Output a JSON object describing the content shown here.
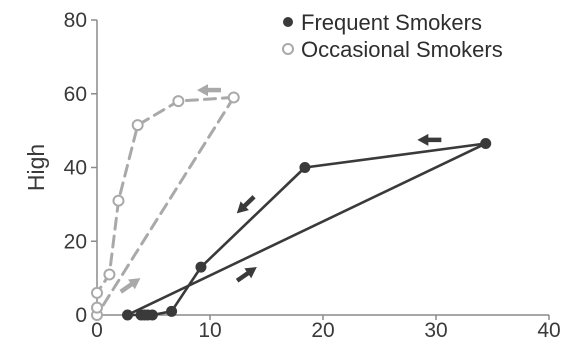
{
  "chart_data": {
    "type": "line",
    "title": "",
    "xlabel": "",
    "ylabel": "High",
    "xlim": [
      0,
      40
    ],
    "ylim": [
      0,
      80
    ],
    "xticks": [
      0,
      10,
      20,
      30,
      40
    ],
    "yticks": [
      0,
      20,
      40,
      60,
      80
    ],
    "grid": false,
    "legend_position": "top-right",
    "series": [
      {
        "name": "Frequent Smokers",
        "color": "#3a3a3a",
        "line_style": "solid",
        "marker": "filled-circle",
        "x": [
          2.7,
          3.9,
          4.2,
          4.5,
          4.9,
          6.6,
          9.2,
          18.4,
          34.4
        ],
        "y": [
          0,
          0,
          0,
          0,
          0,
          1,
          13,
          40,
          46.5
        ],
        "closing_segment": {
          "from": [
            34.4,
            46.5
          ],
          "to": [
            2.7,
            0
          ]
        }
      },
      {
        "name": "Occasional Smokers",
        "color": "#a9a9a9",
        "line_style": "dashed",
        "marker": "open-circle",
        "x": [
          0,
          0,
          0,
          1.1,
          1.9,
          3.6,
          7.2,
          12.1
        ],
        "y": [
          0,
          2,
          6,
          11,
          31,
          51.5,
          58,
          59
        ],
        "closing_segment": {
          "from": [
            12.1,
            59
          ],
          "to": [
            0,
            0
          ]
        }
      }
    ],
    "arrows": [
      {
        "series": "Frequent Smokers",
        "at": [
          29.5,
          47.5
        ],
        "direction": "left"
      },
      {
        "series": "Frequent Smokers",
        "at": [
          13.2,
          30.0
        ],
        "direction": "down-left"
      },
      {
        "series": "Frequent Smokers",
        "at": [
          13.2,
          11.0
        ],
        "direction": "up-right"
      },
      {
        "series": "Occasional Smokers",
        "at": [
          10.0,
          61.0
        ],
        "direction": "left"
      },
      {
        "series": "Occasional Smokers",
        "at": [
          2.9,
          8.0
        ],
        "direction": "up-right"
      }
    ]
  }
}
